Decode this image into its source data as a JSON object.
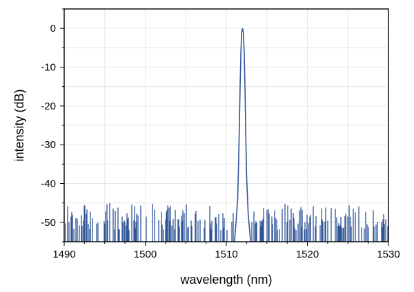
{
  "chart_data": {
    "type": "line",
    "title": "",
    "xlabel": "wavelength (nm)",
    "ylabel": "intensity (dB)",
    "xlim": [
      1490,
      1530
    ],
    "ylim": [
      -55,
      5
    ],
    "x_ticks": [
      1490,
      1500,
      1510,
      1520,
      1530
    ],
    "y_ticks": [
      0,
      -10,
      -20,
      -30,
      -40,
      -50
    ],
    "x_tick_labels": [
      "1490",
      "1500",
      "1510",
      "1520",
      "1530"
    ],
    "y_tick_labels": [
      "0",
      "-10",
      "-20",
      "-30",
      "-40",
      "-50"
    ],
    "grid": true,
    "line_color": "#2f5597",
    "series": [
      {
        "peak": {
          "x": 1512.0,
          "y": 0
        },
        "noise_floor_range": [
          -55,
          -45
        ],
        "x": [
          1511.0,
          1511.2,
          1511.4,
          1511.5,
          1511.6,
          1511.7,
          1511.8,
          1511.9,
          1512.0,
          1512.1,
          1512.2,
          1512.3,
          1512.4,
          1512.5,
          1512.7,
          1513.0
        ],
        "y": [
          -55,
          -50,
          -44,
          -36,
          -26,
          -15,
          -6,
          -1,
          0,
          -1,
          -6,
          -15,
          -27,
          -38,
          -48,
          -55
        ]
      }
    ]
  }
}
